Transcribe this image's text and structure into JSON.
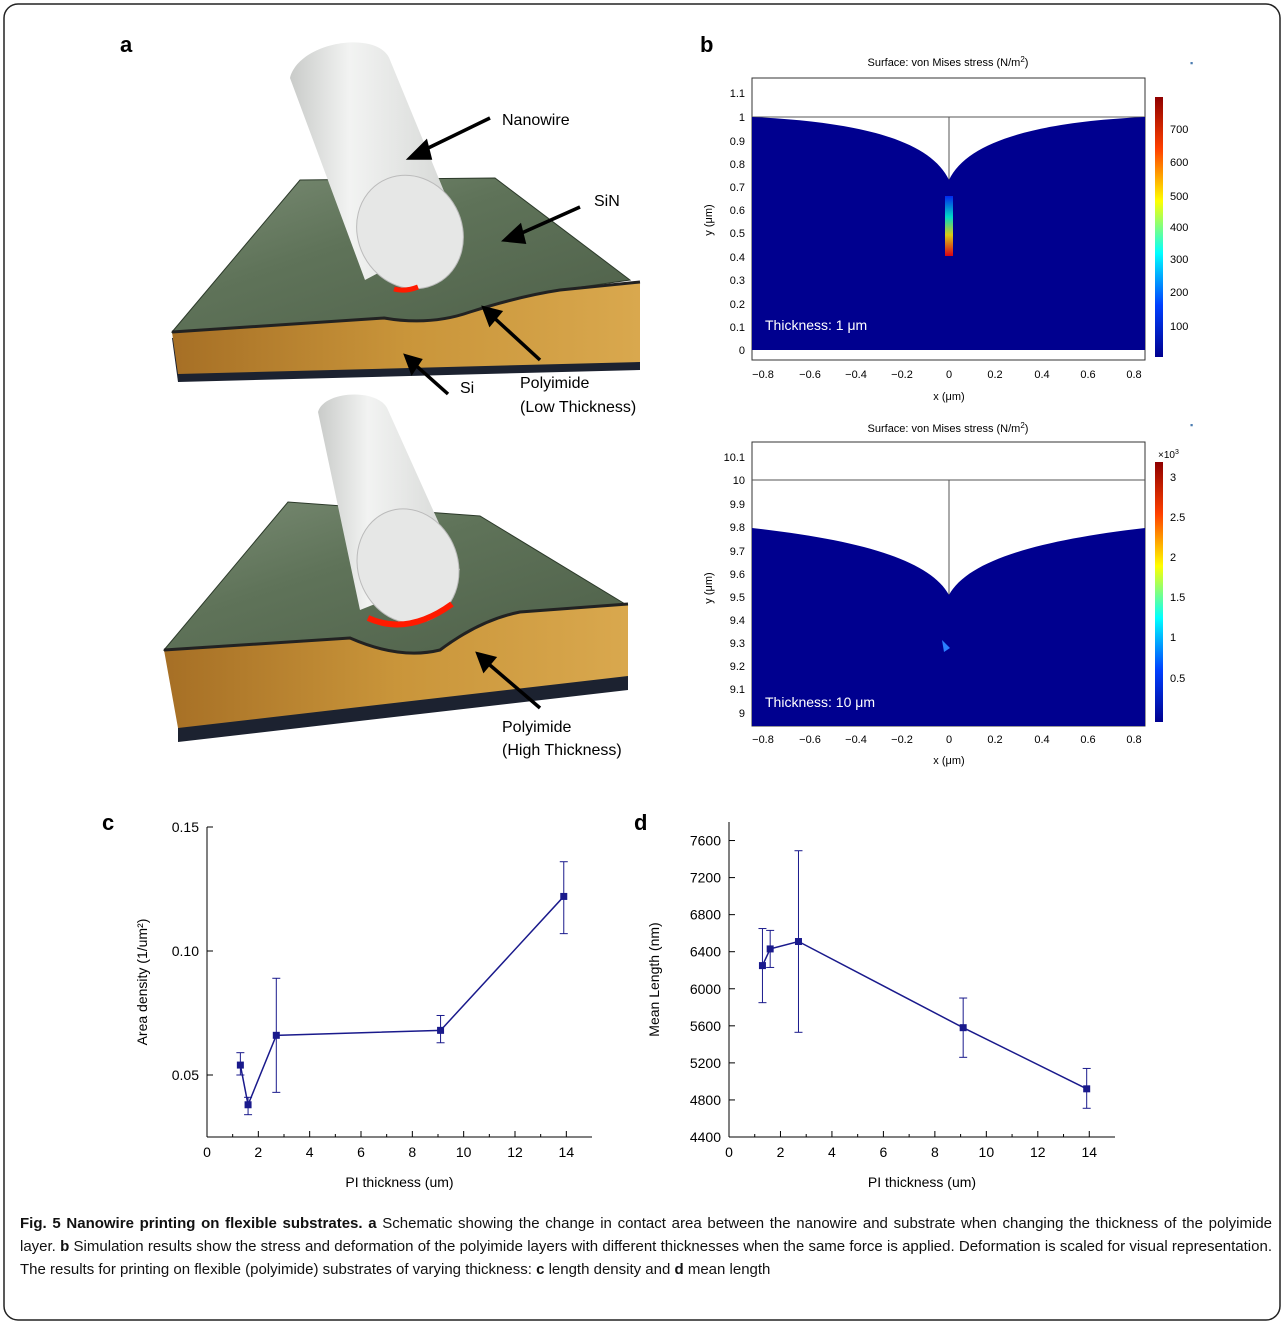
{
  "panels": {
    "a": {
      "label": "a",
      "labels": {
        "nanowire": "Nanowire",
        "sin": "SiN",
        "si": "Si",
        "polyimide_low_1": "Polyimide",
        "polyimide_low_2": "(Low Thickness)",
        "polyimide_high_1": "Polyimide",
        "polyimide_high_2": "(High Thickness)"
      }
    },
    "b": {
      "label": "b",
      "sim_scale_marker": "▪",
      "top": {
        "title": "Surface: von Mises stress (N/m",
        "title_sup": "2",
        "title_end": ")",
        "thickness": "Thickness: 1 μm",
        "ylabel": "y (μm)",
        "xlabel": "x (μm)",
        "yticks": [
          "1.1",
          "1",
          "0.9",
          "0.8",
          "0.7",
          "0.6",
          "0.5",
          "0.4",
          "0.3",
          "0.2",
          "0.1",
          "0"
        ],
        "xticks": [
          "−0.8",
          "−0.6",
          "−0.4",
          "−0.2",
          "0",
          "0.2",
          "0.4",
          "0.6",
          "0.8"
        ],
        "colorbar_ticks": [
          "700",
          "600",
          "500",
          "400",
          "300",
          "200",
          "100"
        ]
      },
      "bottom": {
        "title": "Surface: von Mises stress (N/m",
        "title_sup": "2",
        "title_end": ")",
        "thickness": "Thickness: 10 μm",
        "ylabel": "y (μm)",
        "xlabel": "x (μm)",
        "yticks": [
          "10.1",
          "10",
          "9.9",
          "9.8",
          "9.7",
          "9.6",
          "9.5",
          "9.4",
          "9.3",
          "9.2",
          "9.1",
          "9"
        ],
        "xticks": [
          "−0.8",
          "−0.6",
          "−0.4",
          "−0.2",
          "0",
          "0.2",
          "0.4",
          "0.6",
          "0.8"
        ],
        "colorbar_ticks": [
          "3",
          "2.5",
          "2",
          "1.5",
          "1",
          "0.5"
        ],
        "colorbar_multiplier": "×10",
        "colorbar_multiplier_exp": "3"
      }
    },
    "c": {
      "label": "c"
    },
    "d": {
      "label": "d"
    }
  },
  "chart_data": [
    {
      "panel": "c",
      "type": "line",
      "xlabel": "PI thickness (um)",
      "ylabel": "Area density (1/um²)",
      "xlim": [
        0,
        15
      ],
      "ylim": [
        0.025,
        0.15
      ],
      "xticks": [
        "0",
        "2",
        "4",
        "6",
        "8",
        "10",
        "12",
        "14"
      ],
      "yticks": [
        "0.05",
        "0.10",
        "0.15"
      ],
      "x": [
        1.3,
        1.6,
        2.7,
        9.1,
        13.9
      ],
      "y": [
        0.054,
        0.038,
        0.066,
        0.068,
        0.122
      ],
      "yerr_low": [
        0.05,
        0.034,
        0.043,
        0.063,
        0.107
      ],
      "yerr_high": [
        0.059,
        0.041,
        0.089,
        0.074,
        0.136
      ],
      "grid": false
    },
    {
      "panel": "d",
      "type": "line",
      "xlabel": "PI thickness (um)",
      "ylabel": "Mean Length (nm)",
      "xlim": [
        0,
        15
      ],
      "ylim": [
        4400,
        7800
      ],
      "xticks": [
        "0",
        "2",
        "4",
        "6",
        "8",
        "10",
        "12",
        "14"
      ],
      "yticks": [
        "4400",
        "4800",
        "5200",
        "5600",
        "6000",
        "6400",
        "6800",
        "7200",
        "7600"
      ],
      "x": [
        1.3,
        1.6,
        2.7,
        9.1,
        13.9
      ],
      "y": [
        6250,
        6430,
        6510,
        5580,
        4920
      ],
      "yerr_low": [
        5850,
        6230,
        5530,
        5260,
        4710
      ],
      "yerr_high": [
        6650,
        6630,
        7490,
        5900,
        5140
      ],
      "grid": false
    }
  ],
  "caption": {
    "title": "Fig. 5 Nanowire printing on flexible substrates.",
    "a": "a",
    "a_text": " Schematic showing the change in contact area between the nanowire and substrate when changing the thickness of the polyimide layer. ",
    "b": "b",
    "b_text": " Simulation results show the stress and deformation of the polyimide layers with different thicknesses when the same force is applied. Deformation is scaled for visual representation. The results for printing on flexible (polyimide) substrates of varying thickness: ",
    "c": "c",
    "c_text": " length density and ",
    "d": "d",
    "d_text": " mean length"
  },
  "colors": {
    "sin_green": "#5a6e55",
    "polyimide_gold": "#c9953a",
    "si_dark": "#1c2230",
    "contact_red": "#ff1a00",
    "sim_blue": "#00008f",
    "series_blue": "#1a1a8c"
  }
}
